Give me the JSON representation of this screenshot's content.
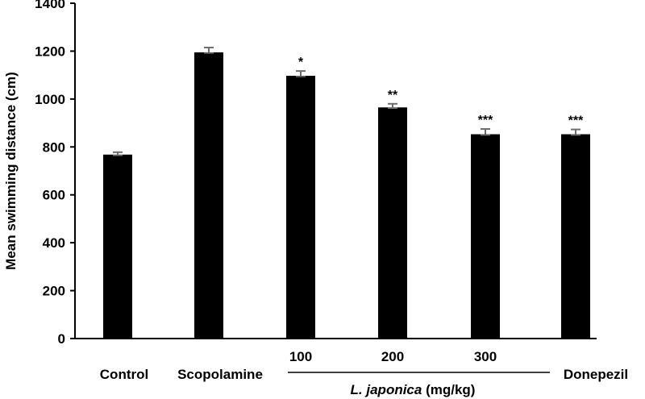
{
  "chart_data": {
    "type": "bar",
    "title": "",
    "ylabel": "Mean swimming distance (cm)",
    "xlabel": "",
    "ylim": [
      0,
      1400
    ],
    "yticks": [
      0,
      200,
      400,
      600,
      800,
      1000,
      1200,
      1400
    ],
    "grid": false,
    "legend": "none",
    "bar_color": "#000000",
    "categories": [
      "Control",
      "Scopolamine",
      "100",
      "200",
      "300",
      "Donepezil"
    ],
    "values": [
      768,
      1195,
      1097,
      965,
      853,
      853
    ],
    "errors": [
      10,
      20,
      20,
      15,
      22,
      20
    ],
    "significance": [
      "",
      "",
      "*",
      "**",
      "***",
      "***"
    ],
    "group_label": {
      "italic": "L. japonica",
      "unit": " (mg/kg)",
      "covers": [
        "100",
        "200",
        "300"
      ]
    }
  }
}
